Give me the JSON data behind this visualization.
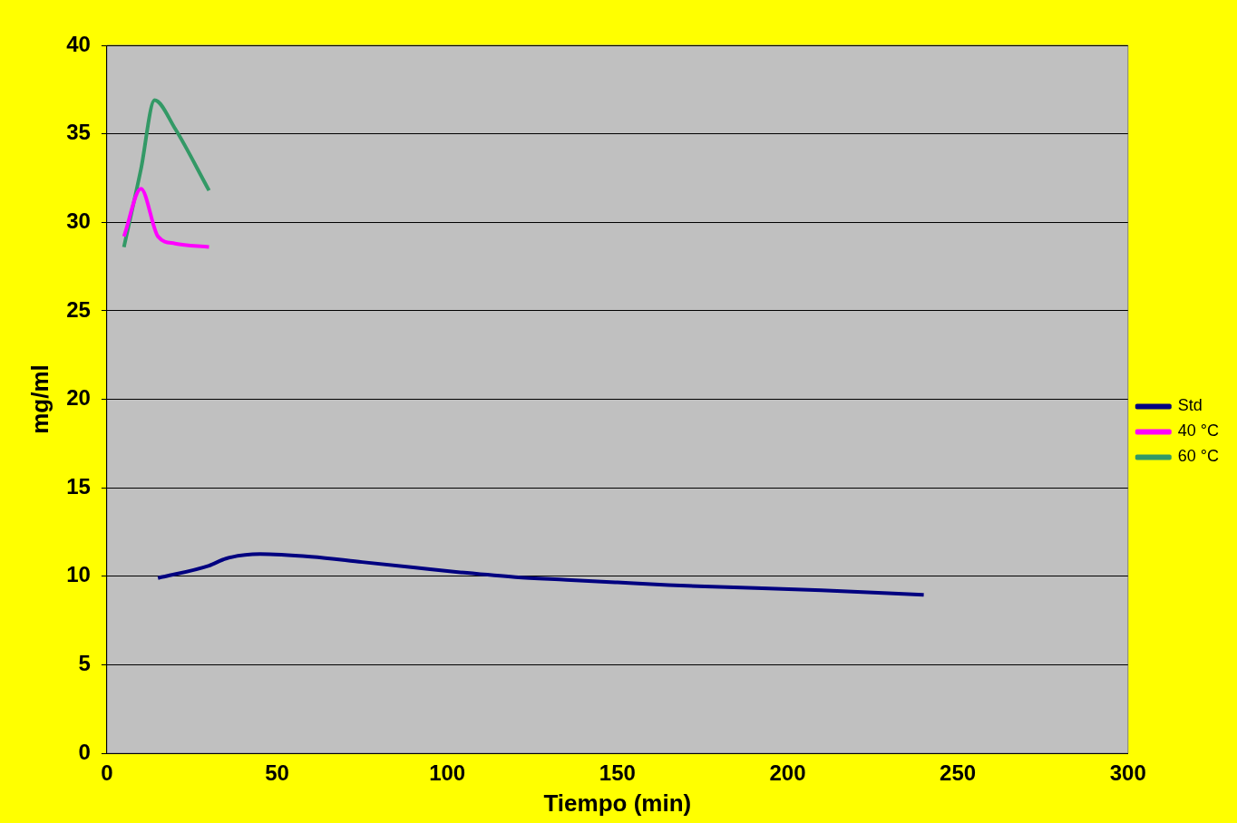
{
  "chart_data": {
    "type": "line",
    "xlabel": "Tiempo (min)",
    "ylabel": "mg/ml",
    "xlim": [
      0,
      300
    ],
    "xticks": [
      0,
      50,
      100,
      150,
      200,
      250,
      300
    ],
    "ylim": [
      0,
      40
    ],
    "yticks": [
      0,
      5,
      10,
      15,
      20,
      25,
      30,
      35,
      40
    ],
    "grid": "y",
    "legend": "right",
    "marker": "none",
    "line_style": "solid",
    "series": [
      {
        "name": "Std",
        "color": "#000080",
        "x": [
          15,
          30,
          35,
          45,
          60,
          75,
          90,
          105,
          120,
          135,
          150,
          165,
          180,
          210,
          240
        ],
        "values": [
          9.9,
          10.6,
          11.0,
          11.25,
          11.1,
          10.8,
          10.5,
          10.2,
          9.95,
          9.8,
          9.65,
          9.5,
          9.4,
          9.2,
          8.95
        ]
      },
      {
        "name": "40 °C",
        "color": "#ff00ff",
        "x": [
          5,
          10,
          15,
          20,
          30
        ],
        "values": [
          29.2,
          31.9,
          29.2,
          28.8,
          28.6
        ]
      },
      {
        "name": "60 °C",
        "color": "#339966",
        "x": [
          5,
          10,
          14,
          20,
          30
        ],
        "values": [
          28.6,
          33,
          36.9,
          35.3,
          31.8
        ]
      }
    ]
  }
}
